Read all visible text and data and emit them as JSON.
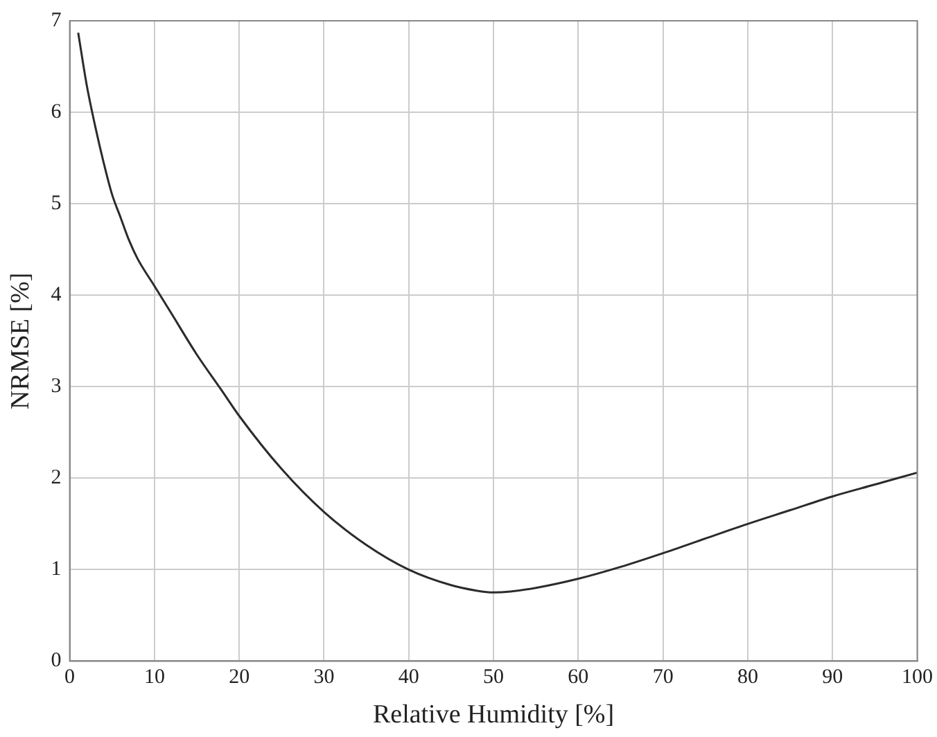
{
  "chart_data": {
    "type": "line",
    "xlabel": "Relative Humidity [%]",
    "ylabel": "NRMSE [%]",
    "x": [
      1,
      2,
      3,
      4,
      5,
      6,
      7,
      8,
      10,
      12,
      15,
      18,
      20,
      25,
      30,
      35,
      40,
      45,
      48,
      50,
      52,
      55,
      60,
      65,
      70,
      75,
      80,
      85,
      90,
      95,
      100
    ],
    "series": [
      {
        "color": "#2b2b2b",
        "values": [
          6.87,
          6.3,
          5.85,
          5.45,
          5.1,
          4.85,
          4.6,
          4.4,
          4.1,
          3.8,
          3.35,
          2.95,
          2.68,
          2.1,
          1.63,
          1.27,
          1.0,
          0.83,
          0.77,
          0.75,
          0.76,
          0.8,
          0.9,
          1.03,
          1.18,
          1.34,
          1.5,
          1.65,
          1.8,
          1.93,
          2.06
        ]
      }
    ],
    "xlim": [
      0,
      100
    ],
    "xticks": [
      0,
      10,
      20,
      30,
      40,
      50,
      60,
      70,
      80,
      90,
      100
    ],
    "ylim": [
      0,
      7
    ],
    "yticks": [
      0,
      1,
      2,
      3,
      4,
      5,
      6,
      7
    ],
    "grid": true,
    "legend": false,
    "marker": "none",
    "line_style": "solid"
  }
}
